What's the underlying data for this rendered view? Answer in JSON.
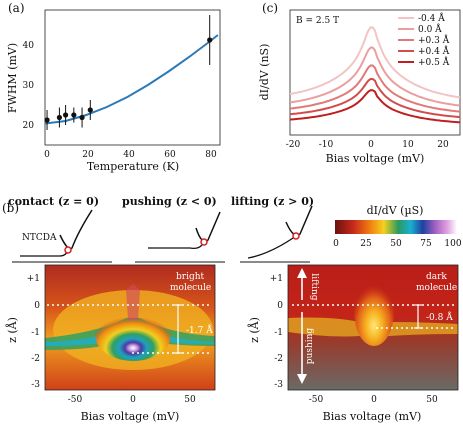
{
  "panels": {
    "a": {
      "label": "(a)",
      "xlabel": "Temperature (K)",
      "ylabel": "FWHM (mV)",
      "xticks": [
        "0",
        "20",
        "40",
        "60",
        "80"
      ],
      "yticks": [
        "20",
        "30",
        "40"
      ]
    },
    "c_top": {
      "label": "(c)",
      "field": "B = 2.5 T",
      "xlabel": "Bias voltage (mV)",
      "ylabel": "dI/dV (nS)",
      "xticks": [
        "-20",
        "-10",
        "0",
        "10",
        "20"
      ]
    },
    "b": {
      "label": "(b)",
      "schematics": [
        {
          "title": "contact (z = 0)"
        },
        {
          "title": "pushing (z < 0)"
        },
        {
          "title": "lifting (z > 0)"
        }
      ],
      "ntcda": "NTCDA",
      "colorbar_title": "dI/dV (µS)",
      "colorbar_ticks": [
        "0",
        "25",
        "50",
        "75",
        "100"
      ],
      "left_map": {
        "annotation": "bright\nmolecule",
        "annotation_line1": "bright",
        "annotation_line2": "molecule",
        "shift": "-1.7 Å",
        "xlabel": "Bias voltage (mV)",
        "ylabel": "z (Å)",
        "xticks": [
          "-50",
          "0",
          "50"
        ],
        "yticks": [
          "+1",
          "0",
          "-1",
          "-2",
          "-3"
        ]
      },
      "right_map": {
        "annotation_line1": "dark",
        "annotation_line2": "molecule",
        "shift": "-0.8 Å",
        "lifting": "lifting",
        "pushing": "pushing",
        "xlabel": "Bias voltage (mV)",
        "ylabel": "z (Å)",
        "xticks": [
          "-50",
          "0",
          "50"
        ],
        "yticks": [
          "+1",
          "0",
          "-1",
          "-2",
          "-3"
        ]
      }
    }
  },
  "chart_data": [
    {
      "type": "line",
      "title": "",
      "xlabel": "Temperature (K)",
      "ylabel": "FWHM (mV)",
      "xlim": [
        0,
        85
      ],
      "ylim": [
        18,
        45
      ],
      "series": [
        {
          "kind": "points",
          "x": [
            1,
            7,
            10,
            14,
            18,
            22,
            80
          ],
          "y": [
            23,
            23.5,
            24,
            24,
            23.5,
            25,
            39
          ],
          "yerr": [
            2,
            2,
            2,
            1.5,
            2,
            2,
            5
          ]
        },
        {
          "kind": "fit",
          "x": [
            0,
            10,
            20,
            30,
            40,
            50,
            60,
            70,
            80,
            84
          ],
          "y": [
            22.3,
            22.8,
            24,
            25.6,
            27.6,
            30,
            32.7,
            35.6,
            38.7,
            40
          ]
        }
      ]
    },
    {
      "type": "line",
      "title": "",
      "xlabel": "Bias voltage (mV)",
      "ylabel": "dI/dV (nS)",
      "xlim": [
        -25,
        25
      ],
      "series": [
        {
          "name": "-0.4 Å",
          "color": "#f2c4c4",
          "peak": 48,
          "base": 14
        },
        {
          "name": "0.0 Å",
          "color": "#eb9e9e",
          "peak": 39,
          "base": 11
        },
        {
          "name": "+0.3 Å",
          "color": "#e07a7a",
          "peak": 31,
          "base": 9
        },
        {
          "name": "+0.4 Å",
          "color": "#d24c4c",
          "peak": 25,
          "base": 7
        },
        {
          "name": "+0.5 Å",
          "color": "#bf1f1f",
          "peak": 20,
          "base": 5
        }
      ]
    }
  ]
}
